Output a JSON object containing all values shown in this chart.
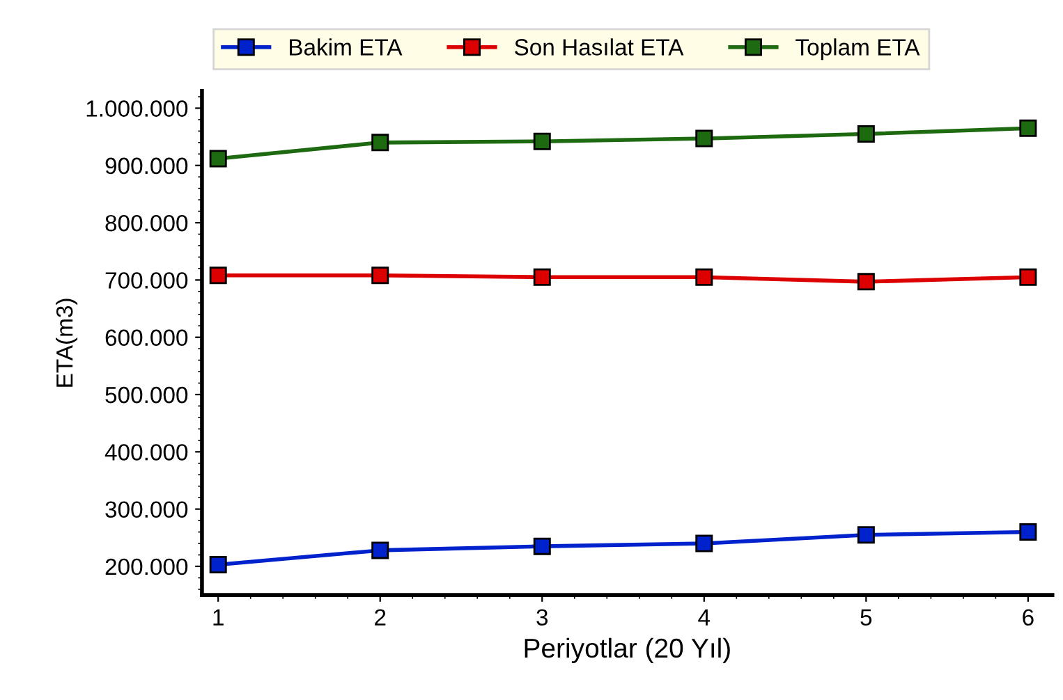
{
  "chart_data": {
    "type": "line",
    "xlabel": "Periyotlar (20 Yıl)",
    "ylabel": "ETA(m3)",
    "x": [
      1,
      2,
      3,
      4,
      5,
      6
    ],
    "series": [
      {
        "name": "Bakim ETA",
        "color": "#0022cc",
        "values": [
          203000,
          228000,
          235000,
          240000,
          255000,
          260000
        ]
      },
      {
        "name": "Son Hasılat ETA",
        "color": "#dd0000",
        "values": [
          708000,
          708000,
          705000,
          705000,
          697000,
          705000
        ]
      },
      {
        "name": "Toplam ETA",
        "color": "#1e6a10",
        "values": [
          912000,
          940000,
          942000,
          947000,
          955000,
          965000
        ]
      }
    ],
    "xlim": [
      0.9,
      6.15
    ],
    "xticks": [
      1,
      2,
      3,
      4,
      5,
      6
    ],
    "ylim": [
      150000,
      1030000
    ],
    "yticks": [
      {
        "value": 200000,
        "label": "200.000"
      },
      {
        "value": 300000,
        "label": "300.000"
      },
      {
        "value": 400000,
        "label": "400.000"
      },
      {
        "value": 500000,
        "label": "500.000"
      },
      {
        "value": 600000,
        "label": "600.000"
      },
      {
        "value": 700000,
        "label": "700.000"
      },
      {
        "value": 800000,
        "label": "800.000"
      },
      {
        "value": 900000,
        "label": "900.000"
      },
      {
        "value": 1000000,
        "label": "1.000.000"
      }
    ],
    "marker": "square",
    "line_style": "solid",
    "grid": false,
    "legend": "top"
  }
}
